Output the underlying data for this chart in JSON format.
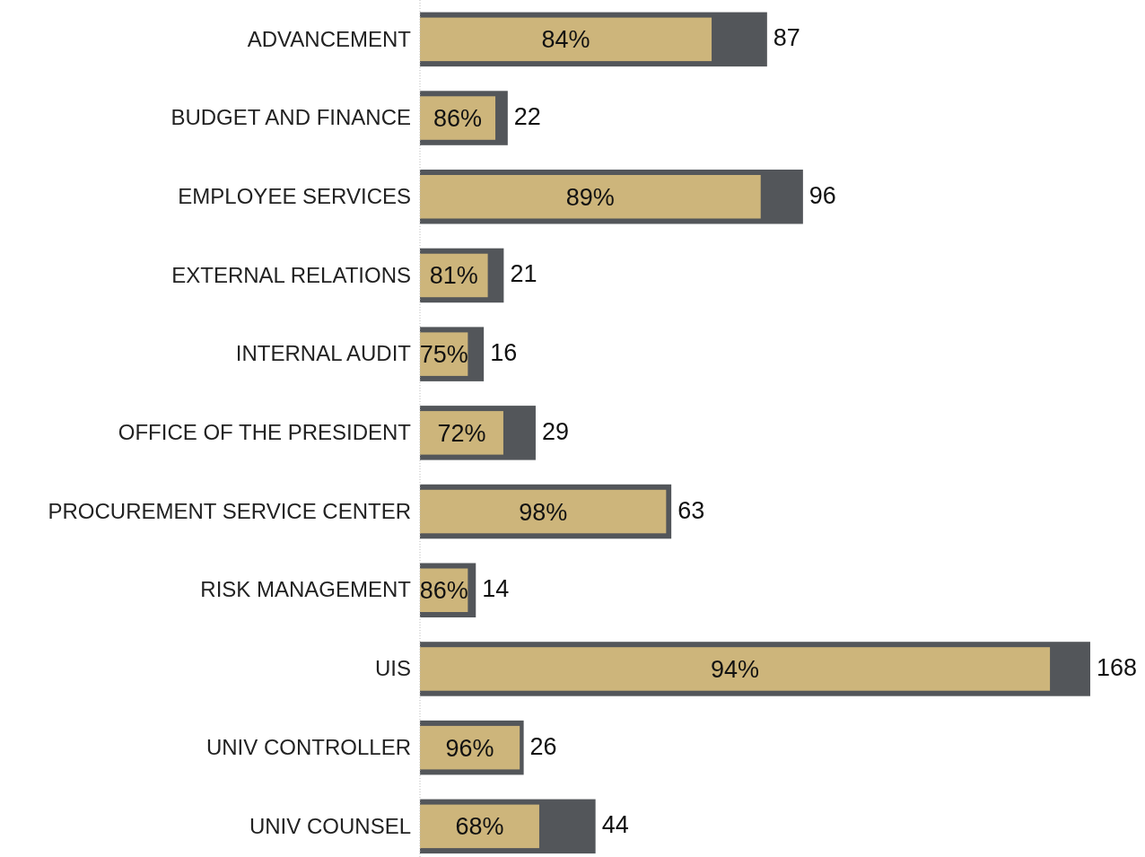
{
  "chart_data": {
    "type": "bar",
    "orientation": "horizontal",
    "categories": [
      "ADVANCEMENT",
      "BUDGET AND FINANCE",
      "EMPLOYEE SERVICES",
      "EXTERNAL RELATIONS",
      "INTERNAL AUDIT",
      "OFFICE OF THE PRESIDENT",
      "PROCUREMENT SERVICE CENTER",
      "RISK MANAGEMENT",
      "UIS",
      "UNIV CONTROLLER",
      "UNIV COUNSEL"
    ],
    "series": [
      {
        "color": "#53565a",
        "values": [
          87,
          22,
          96,
          21,
          16,
          29,
          63,
          14,
          168,
          26,
          44
        ],
        "value_labels": [
          "87",
          "22",
          "96",
          "21",
          "16",
          "29",
          "63",
          "14",
          "168",
          "26",
          "44"
        ]
      },
      {
        "color": "#cdb57b",
        "values": [
          73.1,
          18.9,
          85.4,
          17.0,
          12.0,
          20.9,
          61.7,
          12.0,
          157.9,
          25.0,
          29.9
        ]
      }
    ],
    "annotations": [
      "84%",
      "86%",
      "89%",
      "81%",
      "75%",
      "72%",
      "98%",
      "86%",
      "94%",
      "96%",
      "68%"
    ]
  }
}
